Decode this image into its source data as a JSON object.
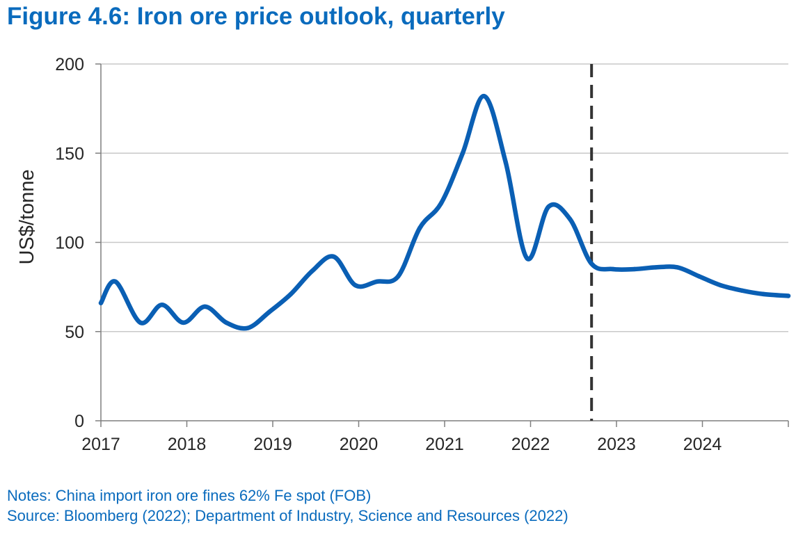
{
  "title": "Figure 4.6: Iron ore price outlook, quarterly",
  "notes": "Notes: China import iron ore fines 62% Fe spot (FOB)",
  "source": "Source: Bloomberg (2022); Department of Industry, Science and Resources (2022)",
  "colors": {
    "title": "#0a6bbd",
    "series": "#0a5fb4",
    "grid": "#c8c8c8",
    "divider": "#333333"
  },
  "chart_data": {
    "type": "line",
    "title": "Figure 4.6: Iron ore price outlook, quarterly",
    "xlabel": "",
    "ylabel": "US$/tonne",
    "xlim": [
      2017.0,
      2025.0
    ],
    "ylim": [
      0,
      200
    ],
    "yticks": [
      0,
      50,
      100,
      150,
      200
    ],
    "xticks": [
      {
        "value": 2017,
        "label": "2017"
      },
      {
        "value": 2018,
        "label": "2018"
      },
      {
        "value": 2019,
        "label": "2019"
      },
      {
        "value": 2020,
        "label": "2020"
      },
      {
        "value": 2021,
        "label": "2021"
      },
      {
        "value": 2022,
        "label": "2022"
      },
      {
        "value": 2023,
        "label": "2023"
      },
      {
        "value": 2024,
        "label": "2024"
      }
    ],
    "grid": "horizontal",
    "forecast_divider_x": 2022.71,
    "series": [
      {
        "name": "",
        "x": [
          2017.0,
          2017.17,
          2017.46,
          2017.71,
          2017.96,
          2018.21,
          2018.46,
          2018.71,
          2018.96,
          2019.21,
          2019.46,
          2019.71,
          2019.96,
          2020.21,
          2020.46,
          2020.71,
          2020.96,
          2021.21,
          2021.46,
          2021.71,
          2021.96,
          2022.21,
          2022.46,
          2022.71,
          2022.96,
          2023.21,
          2023.46,
          2023.71,
          2023.96,
          2024.21,
          2024.46,
          2024.71,
          2025.0
        ],
        "values": [
          66,
          78,
          55,
          65,
          55,
          64,
          55,
          52,
          61,
          71,
          84,
          92,
          76,
          78,
          81,
          108,
          122,
          150,
          182,
          145,
          91,
          120,
          113,
          88,
          85,
          85,
          86,
          86,
          81,
          76,
          73,
          71,
          70
        ]
      }
    ]
  }
}
